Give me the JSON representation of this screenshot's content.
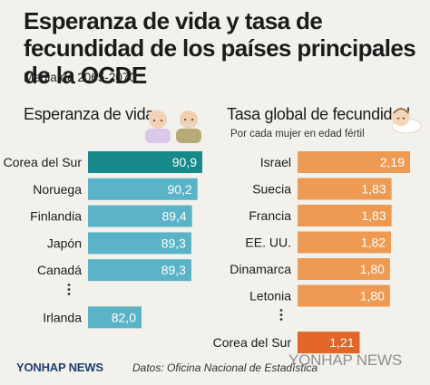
{
  "title": "Esperanza de vida y tasa de fecundidad de los países principales de la OCDE",
  "subtitle": "Media de 2065-2070",
  "left_panel": {
    "title": "Esperanza de vida"
  },
  "right_panel": {
    "title": "Tasa global de fecundidad",
    "note": "Por cada mujer en edad fértil"
  },
  "footer": {
    "logo": "YONHAP NEWS",
    "source": "Datos: Oficina Nacional de Estadística",
    "watermark": "YONHAP NEWS"
  },
  "colors": {
    "left_bar": "#5ab3c6",
    "left_highlight": "#17898a",
    "right_bar": "#ef9a53",
    "right_highlight": "#e2652a"
  },
  "chart_data": [
    {
      "type": "bar",
      "orientation": "horizontal",
      "title": "Esperanza de vida",
      "categories": [
        "Corea del Sur",
        "Noruega",
        "Finlandia",
        "Japón",
        "Canadá",
        "Irlanda"
      ],
      "values": [
        90.9,
        90.2,
        89.4,
        89.3,
        89.3,
        82.0
      ],
      "value_labels": [
        "90,9",
        "90,2",
        "89,4",
        "89,3",
        "89,3",
        "82,0"
      ],
      "gap_before_index": 5,
      "highlight_index": 0
    },
    {
      "type": "bar",
      "orientation": "horizontal",
      "title": "Tasa global de fecundidad",
      "categories": [
        "Israel",
        "Suecia",
        "Francia",
        "EE. UU.",
        "Dinamarca",
        "Letonia",
        "Corea del Sur"
      ],
      "values": [
        2.19,
        1.83,
        1.83,
        1.82,
        1.8,
        1.8,
        1.21
      ],
      "value_labels": [
        "2,19",
        "1,83",
        "1,83",
        "1,82",
        "1,80",
        "1,80",
        "1,21"
      ],
      "gap_before_index": 6,
      "highlight_index": 6
    }
  ]
}
